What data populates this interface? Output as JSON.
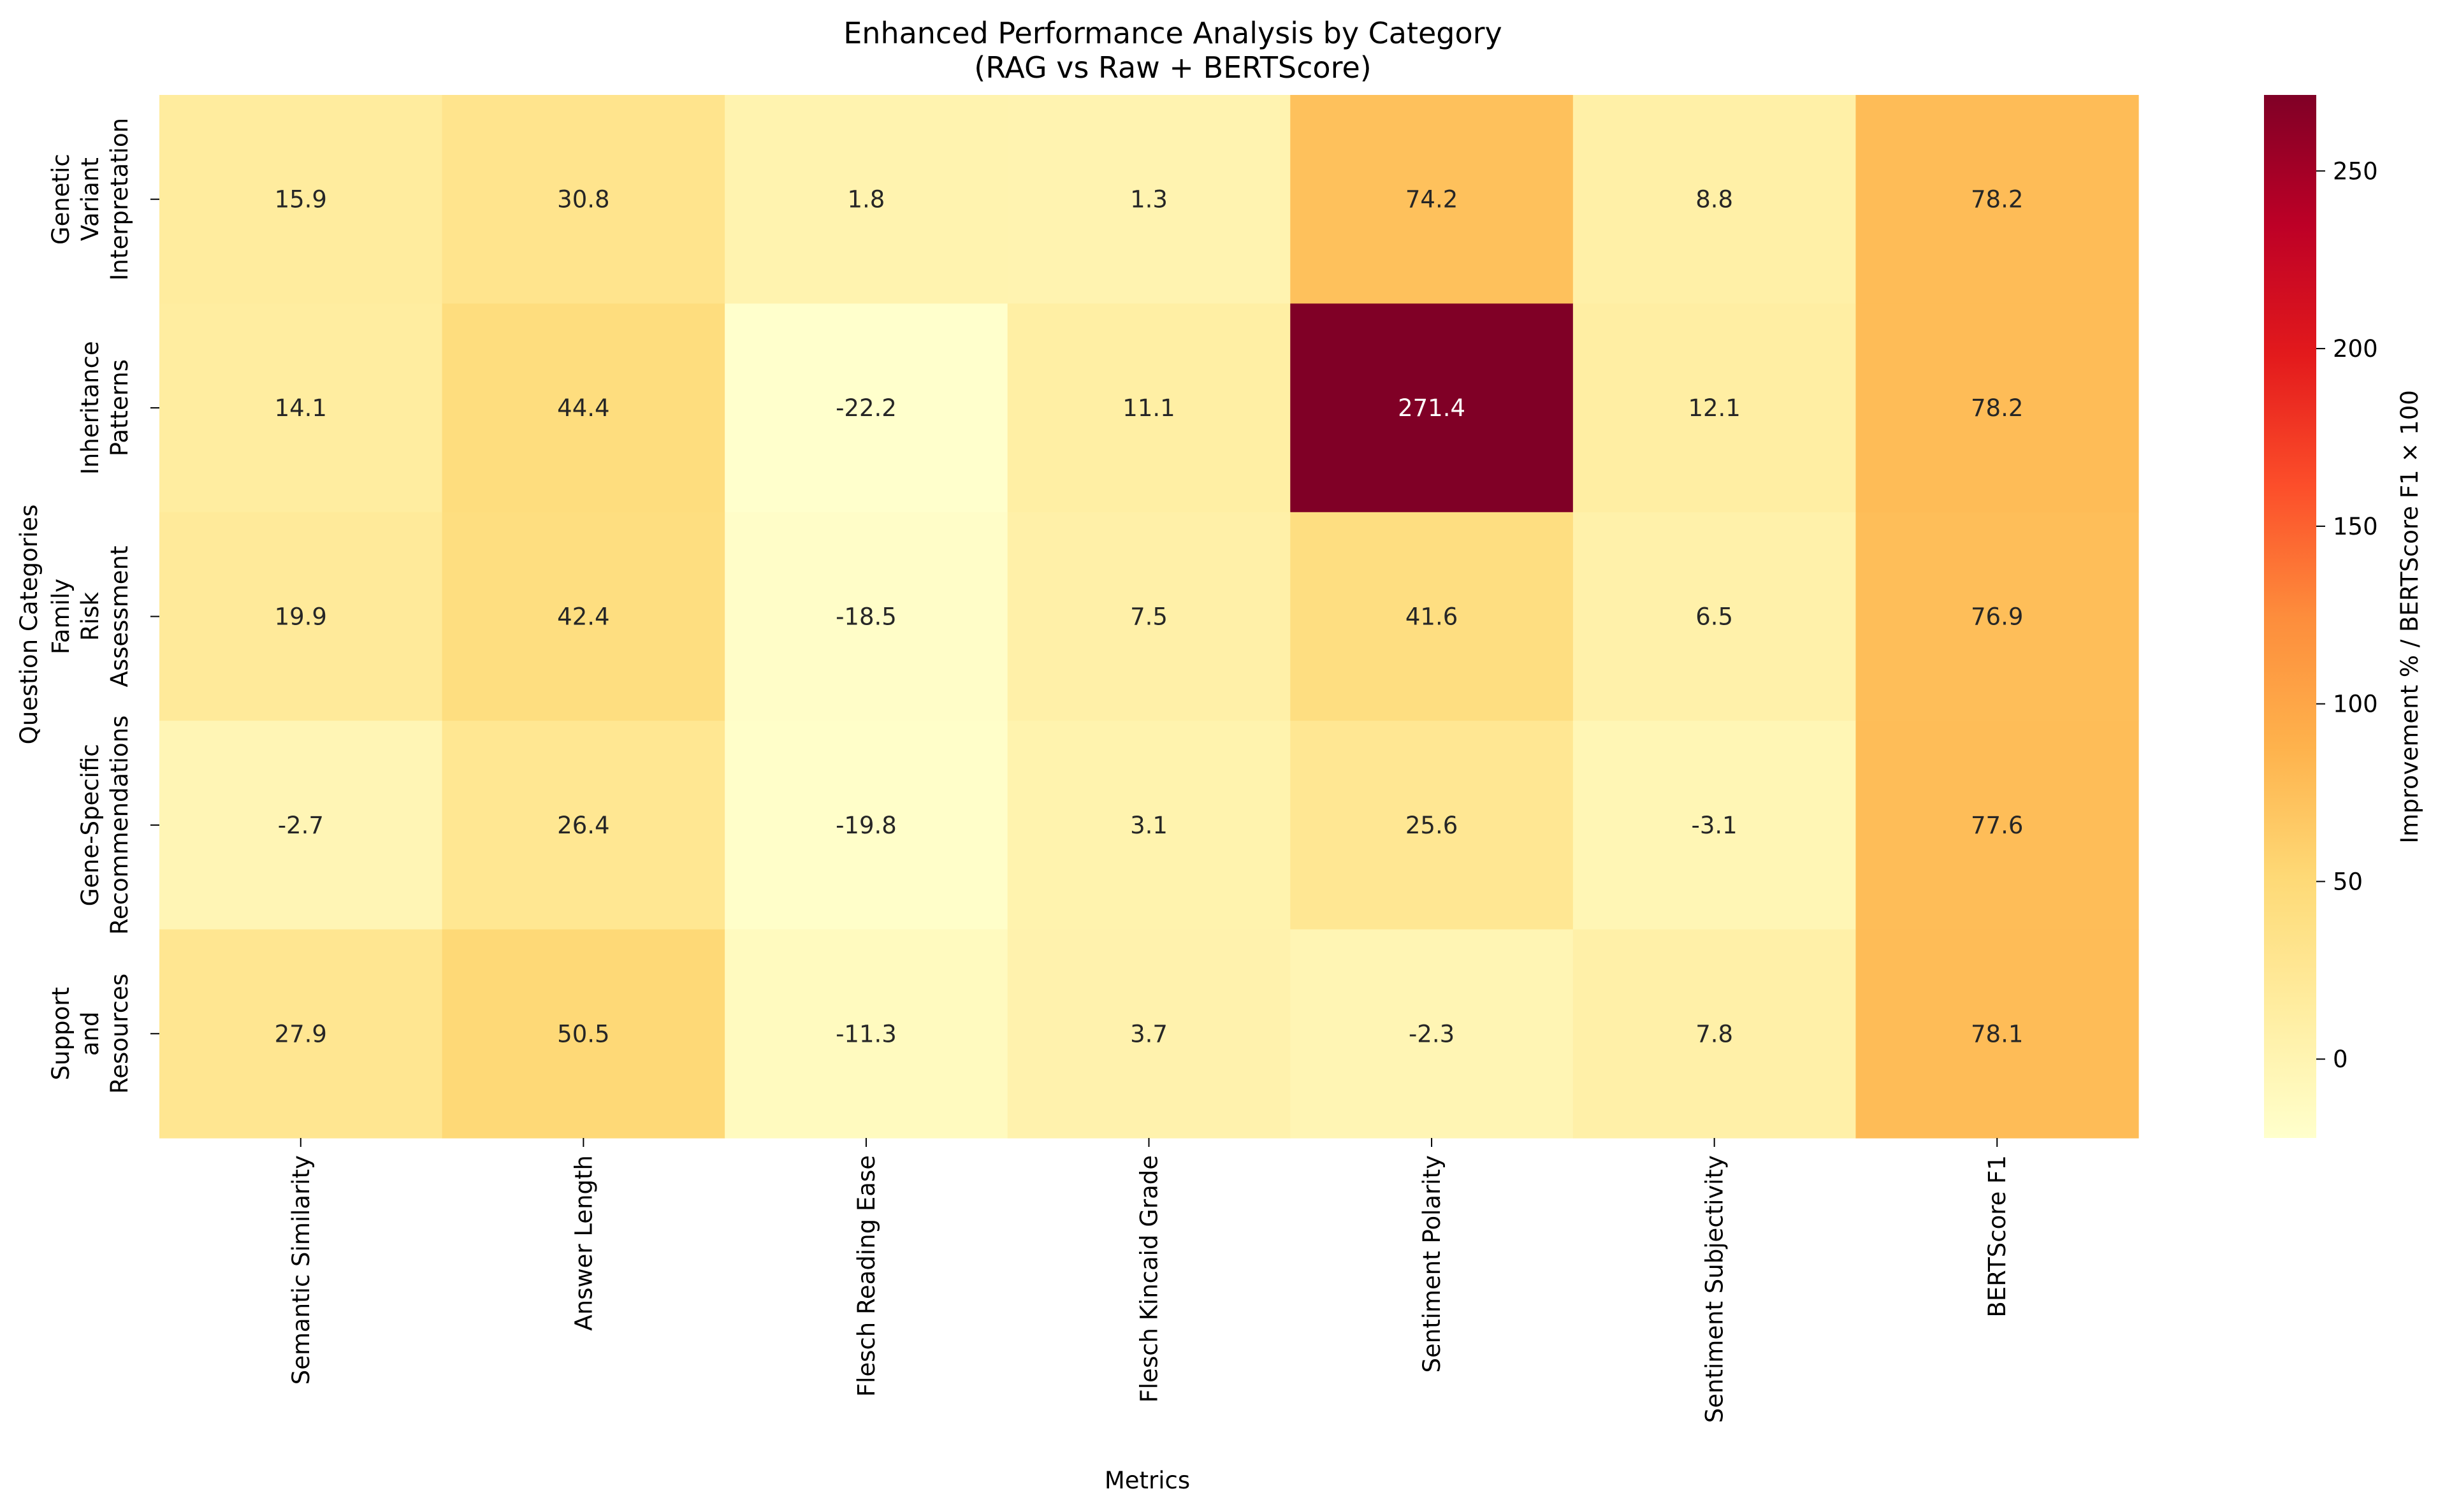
{
  "chart_data": {
    "type": "heatmap",
    "title": "Enhanced Performance Analysis by Category",
    "subtitle": "(RAG vs Raw + BERTScore)",
    "xlabel": "Metrics",
    "ylabel": "Question Categories",
    "colorbar_label": "Improvement % / BERTScore F1 × 100",
    "colormap": "YlOrRd",
    "vmin": -22.2,
    "vmax": 271.4,
    "colorbar_ticks": [
      0,
      50,
      100,
      150,
      200,
      250
    ],
    "columns": [
      "Semantic Similarity",
      "Answer Length",
      "Flesch Reading Ease",
      "Flesch Kincaid Grade",
      "Sentiment Polarity",
      "Sentiment Subjectivity",
      "BERTScore F1"
    ],
    "rows": [
      [
        "Genetic",
        "Variant",
        "Interpretation"
      ],
      [
        "Inheritance",
        "Patterns"
      ],
      [
        "Family",
        "Risk",
        "Assessment"
      ],
      [
        "Gene-Specific",
        "Recommendations"
      ],
      [
        "Support",
        "and",
        "Resources"
      ]
    ],
    "values": [
      [
        15.9,
        30.8,
        1.8,
        1.3,
        74.2,
        8.8,
        78.2
      ],
      [
        14.1,
        44.4,
        -22.2,
        11.1,
        271.4,
        12.1,
        78.2
      ],
      [
        19.9,
        42.4,
        -18.5,
        7.5,
        41.6,
        6.5,
        76.9
      ],
      [
        -2.7,
        26.4,
        -19.8,
        3.1,
        25.6,
        -3.1,
        77.6
      ],
      [
        27.9,
        50.5,
        -11.3,
        3.7,
        -2.3,
        7.8,
        78.1
      ]
    ],
    "labels": [
      [
        "15.9",
        "30.8",
        "1.8",
        "1.3",
        "74.2",
        "8.8",
        "78.2"
      ],
      [
        "14.1",
        "44.4",
        "-22.2",
        "11.1",
        "271.4",
        "12.1",
        "78.2"
      ],
      [
        "19.9",
        "42.4",
        "-18.5",
        "7.5",
        "41.6",
        "6.5",
        "76.9"
      ],
      [
        "-2.7",
        "26.4",
        "-19.8",
        "3.1",
        "25.6",
        "-3.1",
        "77.6"
      ],
      [
        "27.9",
        "50.5",
        "-11.3",
        "3.7",
        "-2.3",
        "7.8",
        "78.1"
      ]
    ],
    "grid": false,
    "legend": "colorbar-right"
  }
}
